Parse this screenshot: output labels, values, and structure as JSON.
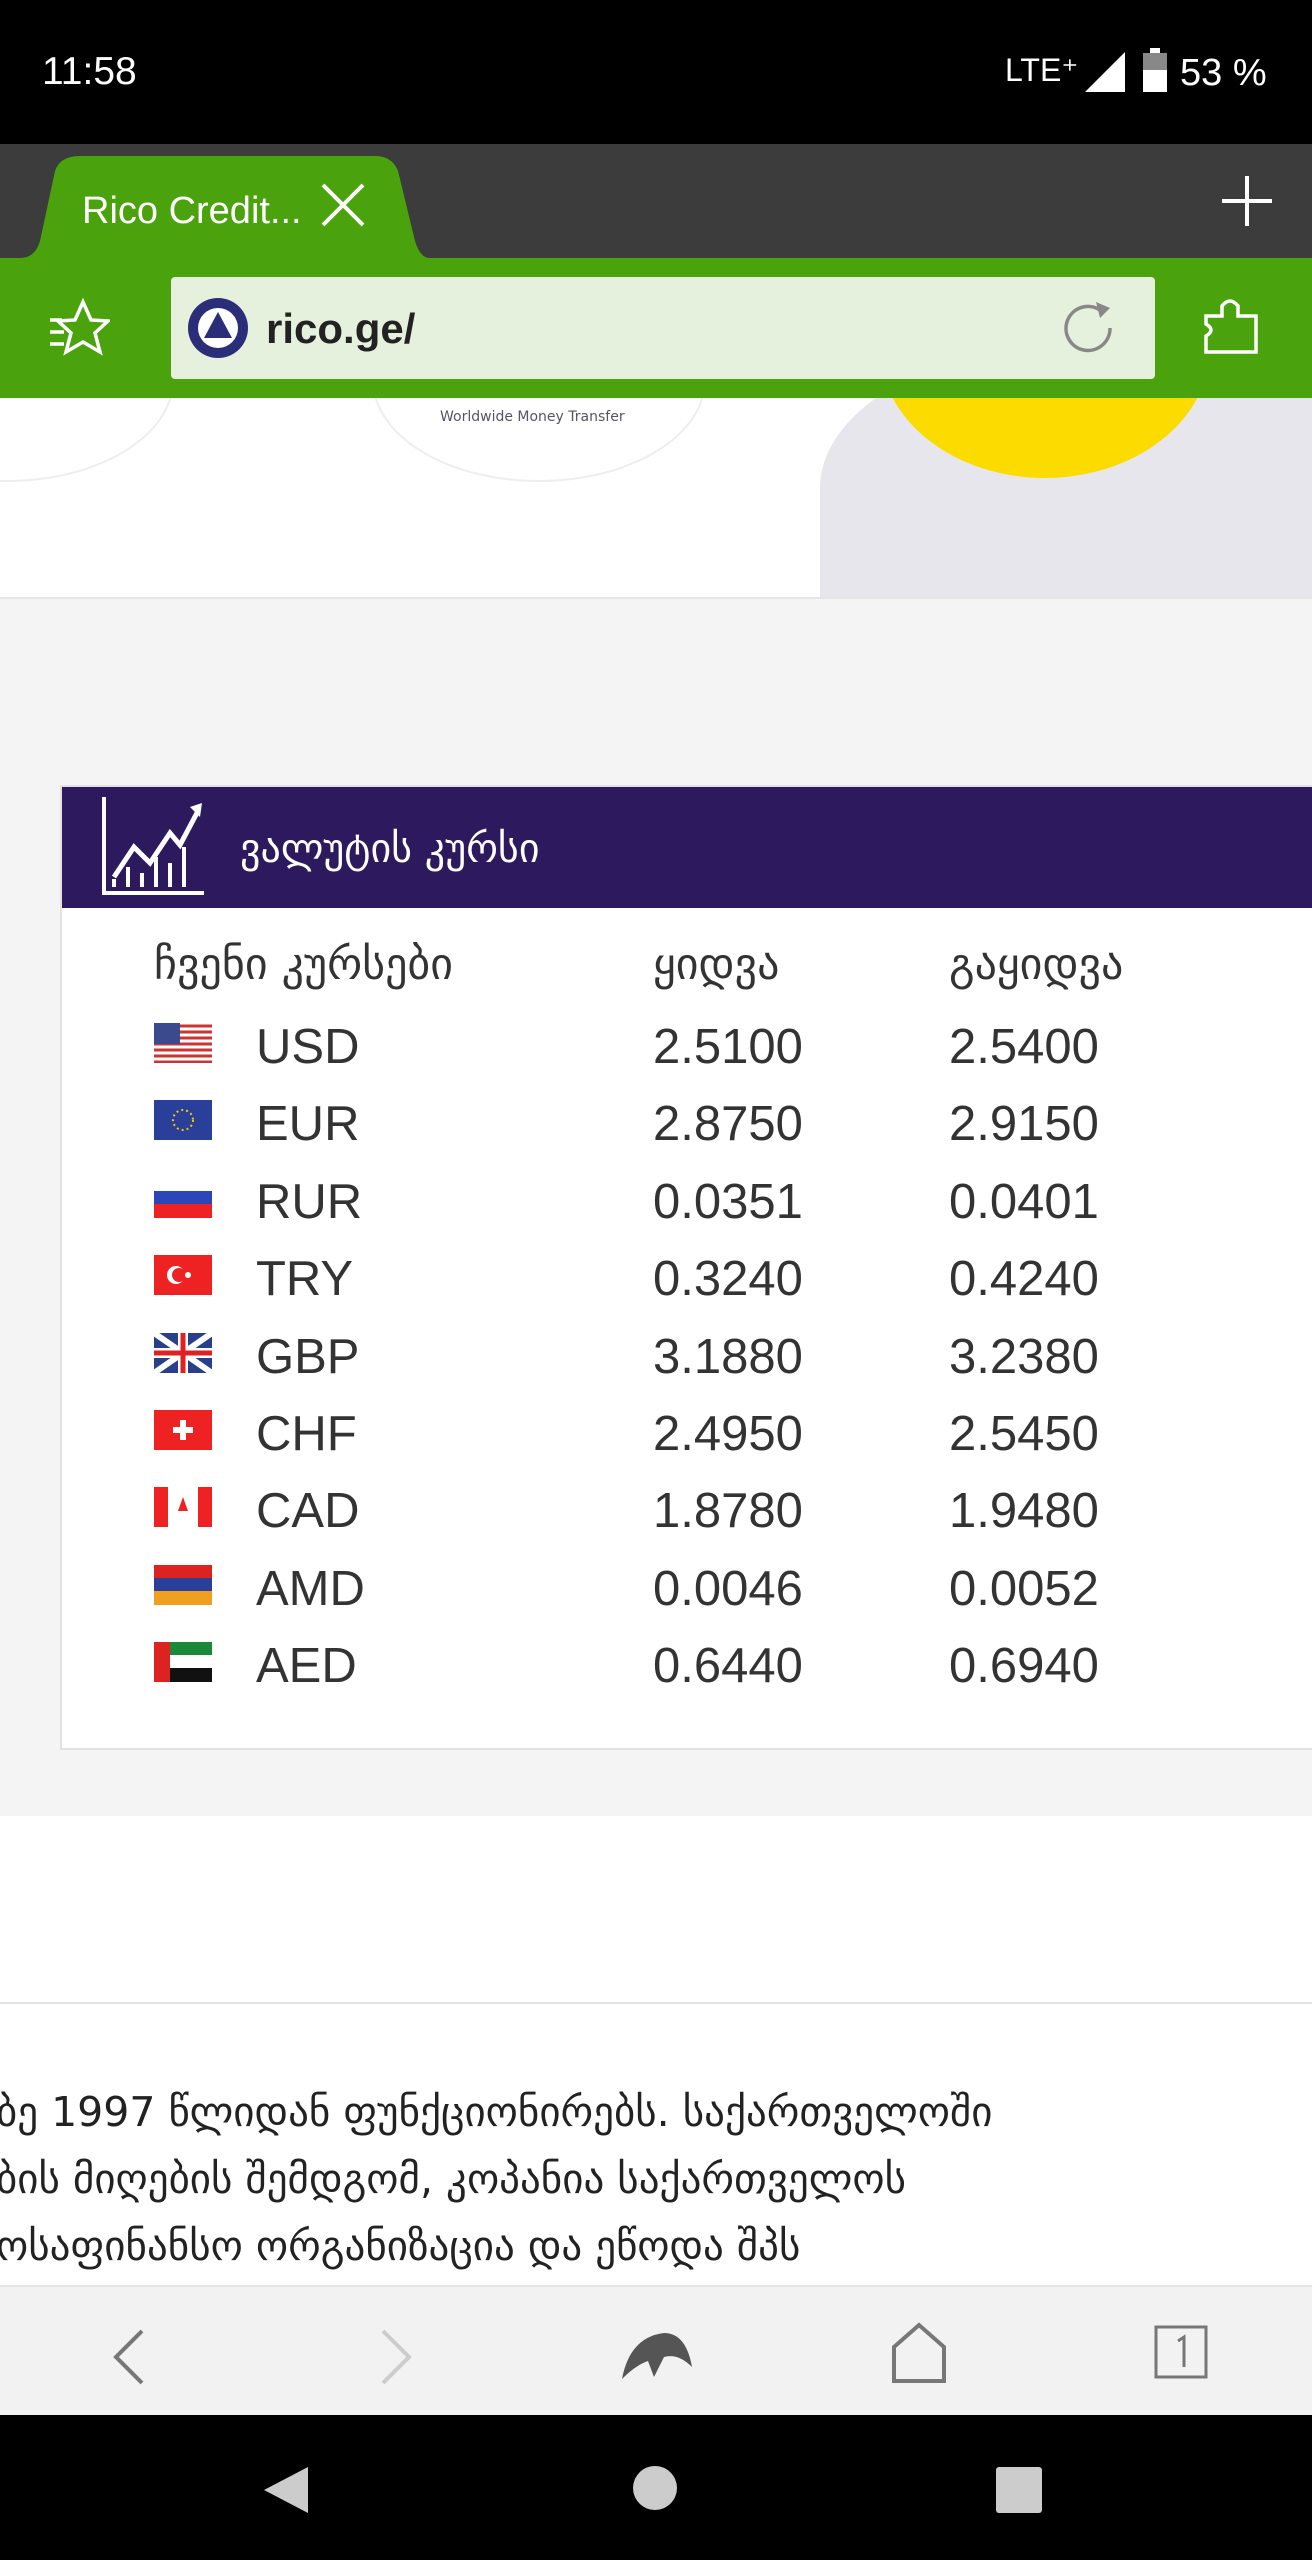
{
  "status_bar": {
    "time": "11:58",
    "network": "LTE⁺",
    "battery": "53 %"
  },
  "browser": {
    "tab_title": "Rico Credit...",
    "url": "rico.ge/"
  },
  "banner": {
    "logo_caption": "Worldwide Money Transfer"
  },
  "rates": {
    "title": "ვალუტის კურსი",
    "headers": [
      "ჩვენი კურსები",
      "ყიდვა",
      "გაყიდვა"
    ],
    "rows": [
      [
        "USD",
        "2.5100",
        "2.5400"
      ],
      [
        "EUR",
        "2.8750",
        "2.9150"
      ],
      [
        "RUR",
        "0.0351",
        "0.0401"
      ],
      [
        "TRY",
        "0.3240",
        "0.4240"
      ],
      [
        "GBP",
        "3.1880",
        "3.2380"
      ],
      [
        "CHF",
        "2.4950",
        "2.5450"
      ],
      [
        "CAD",
        "1.8780",
        "1.9480"
      ],
      [
        "AMD",
        "0.0046",
        "0.0052"
      ],
      [
        "AED",
        "0.6440",
        "0.6940"
      ]
    ]
  },
  "about": {
    "lines": [
      "ბე 1997 წლიდან ფუნქციონირებს. საქართველოში",
      "ბის მიღების შემდგომ, კოპანია საქართველოს",
      "ოსაფინანსო ორგანიზაცია და ეწოდა შპს"
    ]
  }
}
